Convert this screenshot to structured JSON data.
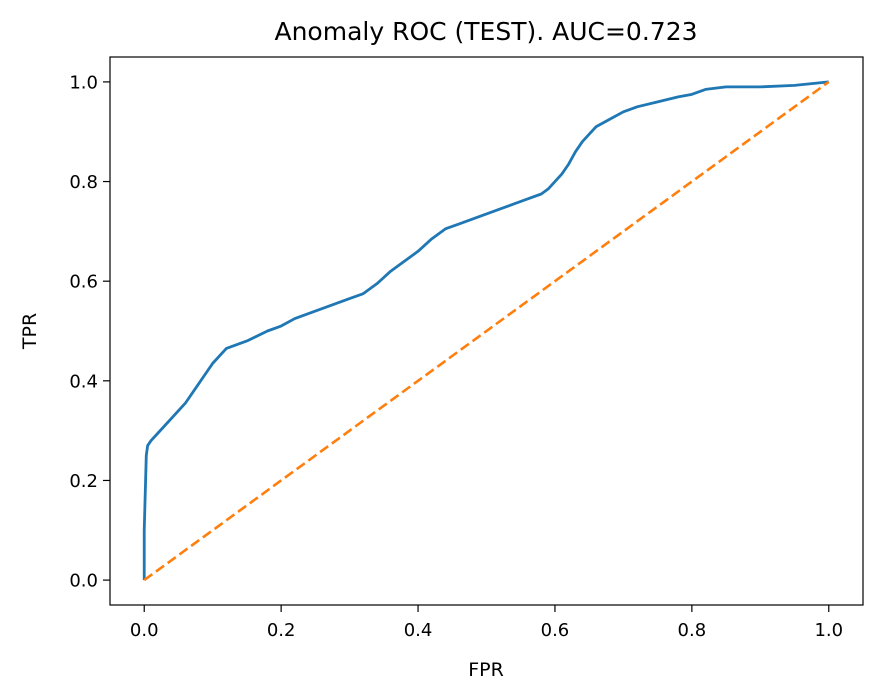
{
  "chart_data": {
    "type": "line",
    "title": "Anomaly ROC (TEST). AUC=0.723",
    "xlabel": "FPR",
    "ylabel": "TPR",
    "xlim": [
      -0.05,
      1.05
    ],
    "ylim": [
      -0.05,
      1.05
    ],
    "xticks": [
      0.0,
      0.2,
      0.4,
      0.6,
      0.8,
      1.0
    ],
    "xtick_labels": [
      "0.0",
      "0.2",
      "0.4",
      "0.6",
      "0.8",
      "1.0"
    ],
    "yticks": [
      0.0,
      0.2,
      0.4,
      0.6,
      0.8,
      1.0
    ],
    "ytick_labels": [
      "0.0",
      "0.2",
      "0.4",
      "0.6",
      "0.8",
      "1.0"
    ],
    "grid": false,
    "series": [
      {
        "color": "#1f77b4",
        "style": "solid",
        "x": [
          0.0,
          0.0,
          0.002,
          0.003,
          0.005,
          0.01,
          0.02,
          0.04,
          0.06,
          0.08,
          0.1,
          0.12,
          0.15,
          0.18,
          0.2,
          0.22,
          0.25,
          0.28,
          0.3,
          0.32,
          0.34,
          0.36,
          0.38,
          0.4,
          0.42,
          0.44,
          0.46,
          0.48,
          0.5,
          0.52,
          0.54,
          0.56,
          0.58,
          0.59,
          0.6,
          0.61,
          0.62,
          0.63,
          0.64,
          0.65,
          0.66,
          0.68,
          0.7,
          0.72,
          0.75,
          0.78,
          0.8,
          0.82,
          0.85,
          0.9,
          0.95,
          1.0
        ],
        "y": [
          0.0,
          0.1,
          0.2,
          0.25,
          0.27,
          0.28,
          0.295,
          0.325,
          0.355,
          0.395,
          0.435,
          0.465,
          0.48,
          0.5,
          0.51,
          0.525,
          0.54,
          0.555,
          0.565,
          0.575,
          0.595,
          0.62,
          0.64,
          0.66,
          0.685,
          0.705,
          0.715,
          0.725,
          0.735,
          0.745,
          0.755,
          0.765,
          0.775,
          0.785,
          0.8,
          0.815,
          0.835,
          0.86,
          0.88,
          0.895,
          0.91,
          0.925,
          0.94,
          0.95,
          0.96,
          0.97,
          0.975,
          0.985,
          0.99,
          0.99,
          0.993,
          1.0
        ]
      },
      {
        "color": "#ff7f0e",
        "style": "dashed",
        "x": [
          0.0,
          1.0
        ],
        "y": [
          0.0,
          1.0
        ]
      }
    ]
  }
}
